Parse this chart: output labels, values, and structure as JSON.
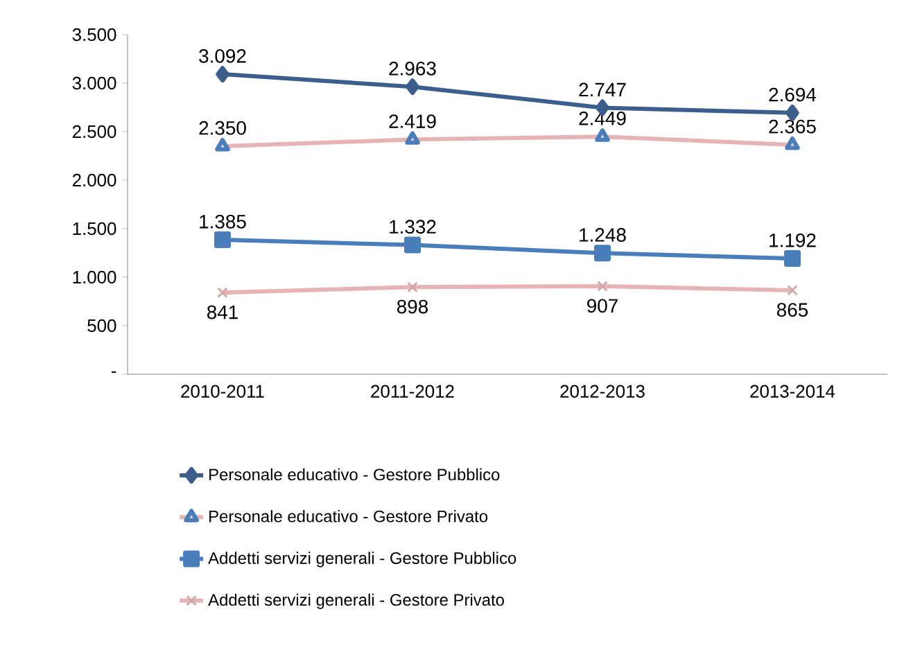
{
  "chart_data": {
    "type": "line",
    "categories": [
      "2010-2011",
      "2011-2012",
      "2012-2013",
      "2013-2014"
    ],
    "ylim": [
      0,
      3500
    ],
    "yticks": [
      {
        "value": 0,
        "label": "-"
      },
      {
        "value": 500,
        "label": "500"
      },
      {
        "value": 1000,
        "label": "1.000"
      },
      {
        "value": 1500,
        "label": "1.500"
      },
      {
        "value": 2000,
        "label": "2.000"
      },
      {
        "value": 2500,
        "label": "2.500"
      },
      {
        "value": 3000,
        "label": "3.000"
      },
      {
        "value": 3500,
        "label": "3.500"
      }
    ],
    "legend": "bottom",
    "grid": false,
    "series": [
      {
        "name": "Personale educativo - Gestore Pubblico",
        "color": "#3b5e8c",
        "marker": "diamond",
        "values": [
          3092,
          2963,
          2747,
          2694
        ],
        "value_labels": [
          "3.092",
          "2.963",
          "2.747",
          "2.694"
        ]
      },
      {
        "name": "Personale educativo - Gestore Privato",
        "color": "#e6b4b4",
        "marker": "triangle",
        "values": [
          2350,
          2419,
          2449,
          2365
        ],
        "value_labels": [
          "2.350",
          "2.419",
          "2.449",
          "2.365"
        ]
      },
      {
        "name": "Addetti servizi generali - Gestore Pubblico",
        "color": "#4a7ebb",
        "marker": "square",
        "values": [
          1385,
          1332,
          1248,
          1192
        ],
        "value_labels": [
          "1.385",
          "1.332",
          "1.248",
          "1.192"
        ]
      },
      {
        "name": "Addetti servizi generali - Gestore Privato",
        "color": "#e6b4b4",
        "marker": "cross",
        "values": [
          841,
          898,
          907,
          865
        ],
        "value_labels": [
          "841",
          "898",
          "907",
          "865"
        ]
      }
    ]
  }
}
